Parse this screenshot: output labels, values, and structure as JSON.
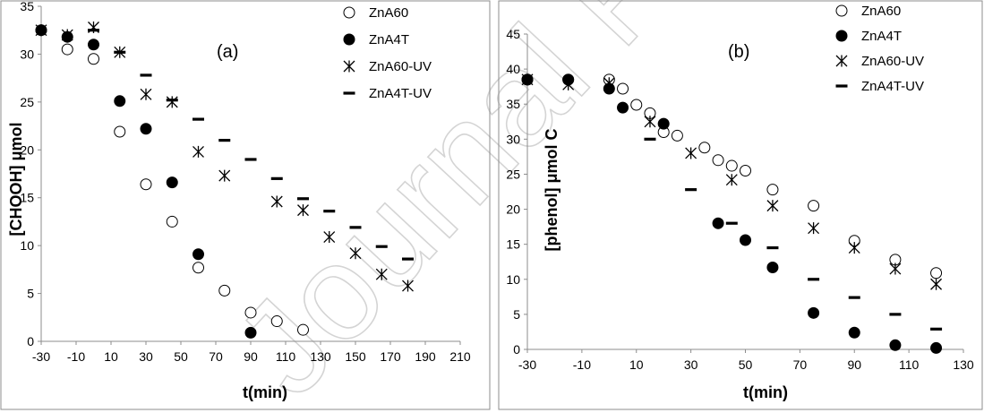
{
  "watermark": "Journal Pre-proof",
  "chart_data": [
    {
      "type": "scatter",
      "panel_label": "(a)",
      "xlabel": "t(min)",
      "ylabel": "[CHOOH] μmol",
      "xlim": [
        -30,
        210
      ],
      "ylim": [
        0,
        35
      ],
      "xticks": [
        -30,
        -10,
        10,
        30,
        50,
        70,
        90,
        110,
        130,
        150,
        170,
        190,
        210
      ],
      "xtick_labels": [
        "-30",
        "-10",
        "10",
        "30",
        "50",
        "70",
        "90",
        "110",
        "130",
        "150",
        "170",
        "190",
        "210"
      ],
      "yticks": [
        0,
        5,
        10,
        15,
        20,
        25,
        30,
        35
      ],
      "ytick_labels": [
        "0",
        "5",
        "10",
        "15",
        "20",
        "25",
        "30",
        "35"
      ],
      "legend_position": "top-right",
      "series": [
        {
          "name": "ZnA60",
          "marker": "open-circle",
          "x": [
            -30,
            -15,
            0,
            15,
            30,
            45,
            60,
            75,
            90,
            105,
            120
          ],
          "y": [
            32.5,
            30.5,
            29.5,
            21.9,
            16.4,
            12.5,
            7.7,
            5.3,
            3.0,
            2.1,
            1.2
          ]
        },
        {
          "name": "ZnA4T",
          "marker": "filled-circle",
          "x": [
            -30,
            -15,
            0,
            15,
            30,
            45,
            60,
            90
          ],
          "y": [
            32.5,
            31.8,
            31.0,
            25.1,
            22.2,
            16.6,
            9.1,
            0.9
          ]
        },
        {
          "name": "ZnA60-UV",
          "marker": "asterisk",
          "x": [
            -30,
            -15,
            0,
            15,
            30,
            45,
            60,
            75,
            105,
            120,
            135,
            150,
            165,
            180
          ],
          "y": [
            32.5,
            32.0,
            32.8,
            30.2,
            25.8,
            25.0,
            19.8,
            17.3,
            14.6,
            13.7,
            10.9,
            9.2,
            7.0,
            5.8
          ]
        },
        {
          "name": "ZnA4T-UV",
          "marker": "dash",
          "x": [
            0,
            15,
            30,
            45,
            60,
            75,
            90,
            105,
            120,
            135,
            150,
            165,
            180
          ],
          "y": [
            32.5,
            30.2,
            27.8,
            25.2,
            23.2,
            21.0,
            19.0,
            17.0,
            14.9,
            13.6,
            11.9,
            9.9,
            8.6
          ]
        }
      ]
    },
    {
      "type": "scatter",
      "panel_label": "(b)",
      "xlabel": "t(min)",
      "ylabel": "[phenol] μmol C",
      "xlim": [
        -30,
        130
      ],
      "ylim": [
        0,
        45
      ],
      "xticks": [
        -30,
        -10,
        10,
        30,
        50,
        70,
        90,
        110,
        130
      ],
      "xtick_labels": [
        "-30",
        "-10",
        "10",
        "30",
        "50",
        "70",
        "90",
        "110",
        "130"
      ],
      "yticks": [
        0,
        5,
        10,
        15,
        20,
        25,
        30,
        35,
        40,
        45
      ],
      "ytick_labels": [
        "0",
        "5",
        "10",
        "15",
        "20",
        "25",
        "30",
        "35",
        "40",
        "45"
      ],
      "legend_position": "top-right",
      "series": [
        {
          "name": "ZnA60",
          "marker": "open-circle",
          "x": [
            -30,
            -15,
            0,
            5,
            10,
            15,
            20,
            25,
            35,
            40,
            45,
            50,
            60,
            75,
            90,
            105,
            120
          ],
          "y": [
            38.5,
            38.5,
            38.5,
            37.2,
            34.9,
            33.7,
            31.0,
            30.5,
            28.8,
            27.0,
            26.2,
            25.5,
            22.8,
            20.5,
            15.5,
            12.8,
            10.9
          ]
        },
        {
          "name": "ZnA4T",
          "marker": "filled-circle",
          "x": [
            -30,
            -15,
            0,
            5,
            20,
            40,
            50,
            60,
            75,
            90,
            105,
            120
          ],
          "y": [
            38.5,
            38.5,
            37.2,
            34.5,
            32.2,
            18.0,
            15.6,
            11.7,
            5.2,
            2.4,
            0.6,
            0.2
          ]
        },
        {
          "name": "ZnA60-UV",
          "marker": "asterisk",
          "x": [
            -30,
            -15,
            0,
            15,
            30,
            45,
            60,
            75,
            90,
            105,
            120
          ],
          "y": [
            38.5,
            37.8,
            38.0,
            32.5,
            28.0,
            24.2,
            20.5,
            17.3,
            14.5,
            11.5,
            9.3
          ]
        },
        {
          "name": "ZnA4T-UV",
          "marker": "dash",
          "x": [
            15,
            30,
            45,
            60,
            75,
            90,
            105,
            120
          ],
          "y": [
            30.0,
            22.8,
            18.0,
            14.5,
            10.0,
            7.4,
            5.0,
            2.9
          ]
        }
      ]
    }
  ]
}
